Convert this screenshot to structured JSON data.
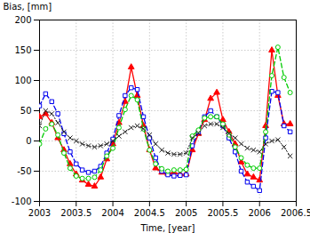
{
  "chart_data": {
    "type": "line",
    "xlabel": "Time, [year]",
    "ylabel": "Bias, [mm]",
    "x": [
      2003.0,
      2003.083,
      2003.167,
      2003.25,
      2003.333,
      2003.417,
      2003.5,
      2003.583,
      2003.667,
      2003.75,
      2003.833,
      2003.917,
      2004.0,
      2004.083,
      2004.167,
      2004.25,
      2004.333,
      2004.417,
      2004.5,
      2004.583,
      2004.667,
      2004.75,
      2004.833,
      2004.917,
      2005.0,
      2005.083,
      2005.167,
      2005.25,
      2005.333,
      2005.417,
      2005.5,
      2005.583,
      2005.667,
      2005.75,
      2005.833,
      2005.917,
      2006.0,
      2006.083,
      2006.167,
      2006.25,
      2006.333,
      2006.417
    ],
    "xlim": [
      2003,
      2006.5
    ],
    "ylim": [
      -100,
      200
    ],
    "xticks": [
      2003,
      2003.5,
      2004,
      2004.5,
      2005,
      2005.5,
      2006,
      2006.5
    ],
    "yticks": [
      -100,
      -50,
      0,
      50,
      100,
      150,
      200
    ],
    "grid": true,
    "series": [
      {
        "color": "#ff0000",
        "marker": "triangle",
        "line_style": "solid",
        "values": [
          40,
          45,
          30,
          5,
          -15,
          -38,
          -55,
          -65,
          -72,
          -75,
          -60,
          -30,
          -5,
          30,
          65,
          122,
          75,
          25,
          -15,
          -45,
          -52,
          -54,
          -52,
          -55,
          -55,
          -15,
          12,
          35,
          70,
          80,
          35,
          15,
          -5,
          -35,
          -55,
          -60,
          -65,
          25,
          150,
          75,
          28,
          28
        ]
      },
      {
        "color": "#0000ee",
        "marker": "square",
        "line_style": "dashed",
        "values": [
          58,
          78,
          65,
          45,
          12,
          -18,
          -38,
          -48,
          -52,
          -50,
          -42,
          -20,
          3,
          42,
          75,
          88,
          85,
          40,
          5,
          -28,
          -50,
          -56,
          -58,
          -57,
          -56,
          -8,
          15,
          40,
          50,
          40,
          25,
          5,
          -18,
          -50,
          -68,
          -75,
          -82,
          5,
          82,
          80,
          25,
          15
        ]
      },
      {
        "color": "#00cc00",
        "marker": "circle",
        "line_style": "dashed",
        "values": [
          -5,
          20,
          28,
          10,
          -20,
          -45,
          -58,
          -62,
          -62,
          -60,
          -48,
          -25,
          -12,
          22,
          52,
          75,
          68,
          20,
          -15,
          -38,
          -46,
          -50,
          -48,
          -48,
          -47,
          8,
          18,
          38,
          40,
          40,
          28,
          10,
          -10,
          -28,
          -40,
          -45,
          -45,
          15,
          108,
          155,
          105,
          80
        ]
      },
      {
        "color": "#222222",
        "marker": "x",
        "line_style": "dotted",
        "values": [
          25,
          50,
          45,
          30,
          15,
          5,
          0,
          -5,
          -8,
          -10,
          -8,
          -5,
          0,
          8,
          15,
          22,
          25,
          20,
          10,
          -5,
          -15,
          -20,
          -22,
          -22,
          -20,
          5,
          13,
          25,
          28,
          28,
          22,
          12,
          5,
          -5,
          -12,
          -15,
          -18,
          -5,
          0,
          2,
          -10,
          -25
        ]
      }
    ]
  }
}
